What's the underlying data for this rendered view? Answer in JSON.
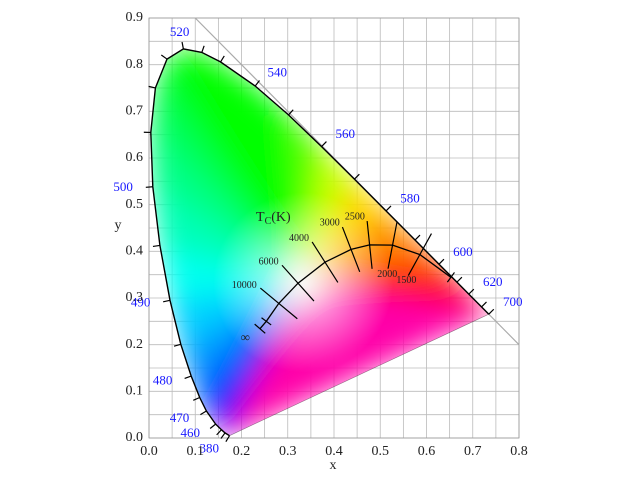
{
  "chart_data": {
    "type": "chromaticity",
    "xlabel": "x",
    "ylabel": "y",
    "xlim": [
      0,
      0.8
    ],
    "ylim": [
      0,
      0.9
    ],
    "xticks": [
      {
        "value": 0,
        "label": "0.0"
      },
      0.1,
      0.2,
      0.3,
      0.4,
      0.5,
      0.6,
      0.7,
      0.8
    ],
    "yticks": [
      {
        "value": 0,
        "label": "0.0"
      },
      0.1,
      0.2,
      0.3,
      0.4,
      0.5,
      0.6,
      0.7,
      0.8,
      0.9
    ],
    "grid": true,
    "spectral_locus": {
      "label_color": "#1a1aff",
      "x": [
        0.1741,
        0.1644,
        0.1566,
        0.144,
        0.1241,
        0.1096,
        0.0913,
        0.0687,
        0.0454,
        0.0235,
        0.0082,
        0.0039,
        0.0139,
        0.0389,
        0.0743,
        0.1142,
        0.1547,
        0.2296,
        0.3016,
        0.3731,
        0.4441,
        0.5125,
        0.5752,
        0.627,
        0.6658,
        0.6915,
        0.719,
        0.7347
      ],
      "y": [
        0.005,
        0.0109,
        0.0177,
        0.0297,
        0.0578,
        0.0868,
        0.1327,
        0.2007,
        0.295,
        0.4127,
        0.5384,
        0.6548,
        0.7502,
        0.812,
        0.8338,
        0.8262,
        0.8059,
        0.7543,
        0.6923,
        0.6245,
        0.5547,
        0.4866,
        0.4242,
        0.3725,
        0.334,
        0.3083,
        0.2809,
        0.2653
      ],
      "labels": [
        380,
        null,
        null,
        460,
        470,
        null,
        480,
        null,
        490,
        null,
        500,
        null,
        null,
        null,
        520,
        null,
        null,
        540,
        null,
        560,
        null,
        580,
        null,
        600,
        null,
        620,
        null,
        700
      ]
    },
    "planckian_locus": {
      "title": {
        "main": "T",
        "sub": "C",
        "rest": "(K)"
      },
      "x": [
        0.2399,
        0.2537,
        0.2807,
        0.3221,
        0.3805,
        0.4369,
        0.477,
        0.5266,
        0.5857,
        0.6528
      ],
      "y": [
        0.2342,
        0.25,
        0.2884,
        0.3318,
        0.3768,
        0.4041,
        0.4137,
        0.4133,
        0.3931,
        0.3444
      ],
      "labels": [
        "∞",
        null,
        10000,
        6000,
        4000,
        3000,
        2500,
        2000,
        1500,
        null
      ]
    }
  }
}
